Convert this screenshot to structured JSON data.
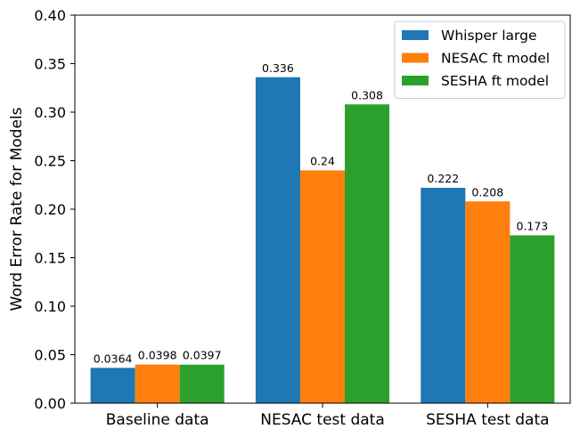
{
  "chart_data": {
    "type": "bar",
    "title": "",
    "xlabel": "",
    "ylabel": "Word Error Rate for Models",
    "categories": [
      "Baseline data",
      "NESAC test data",
      "SESHA test data"
    ],
    "series": [
      {
        "name": "Whisper large",
        "color": "#1f77b4",
        "values": [
          0.0364,
          0.336,
          0.222
        ],
        "labels": [
          "0.0364",
          "0.336",
          "0.222"
        ]
      },
      {
        "name": "NESAC ft model",
        "color": "#ff7f0e",
        "values": [
          0.0398,
          0.24,
          0.208
        ],
        "labels": [
          "0.0398",
          "0.24",
          "0.208"
        ]
      },
      {
        "name": "SESHA ft model",
        "color": "#2ca02c",
        "values": [
          0.0397,
          0.308,
          0.173
        ],
        "labels": [
          "0.0397",
          "0.308",
          "0.173"
        ]
      }
    ],
    "ylim": [
      0,
      0.4
    ],
    "yticks": [
      "0.00",
      "0.05",
      "0.10",
      "0.15",
      "0.20",
      "0.25",
      "0.30",
      "0.35",
      "0.40"
    ],
    "grid": false,
    "legend_position": "top-right"
  }
}
